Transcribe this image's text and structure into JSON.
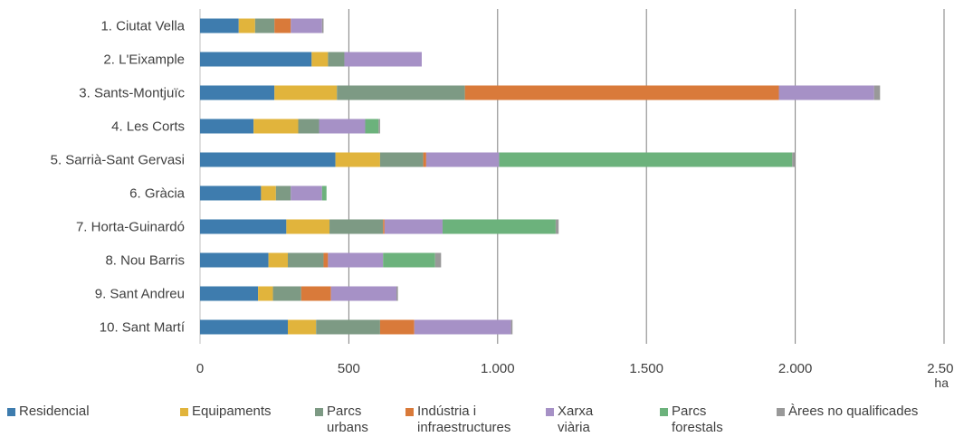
{
  "chart_data": {
    "type": "bar",
    "orientation": "horizontal",
    "stacked": true,
    "categories": [
      "1. Ciutat Vella",
      "2. L'Eixample",
      "3. Sants-Montjuïc",
      "4. Les Corts",
      "5. Sarrià-Sant Gervasi",
      "6. Gràcia",
      "7. Horta-Guinardó",
      "8. Nou Barris",
      "9. Sant Andreu",
      "10. Sant Martí"
    ],
    "series": [
      {
        "name": "Residencial",
        "color": "#3e7cae",
        "values": [
          130,
          375,
          250,
          180,
          455,
          205,
          290,
          230,
          195,
          295
        ]
      },
      {
        "name": "Equipaments",
        "color": "#e1b43c",
        "values": [
          55,
          55,
          210,
          150,
          150,
          50,
          145,
          65,
          50,
          95
        ]
      },
      {
        "name": "Parcs\nurbans",
        "color": "#7d9a84",
        "values": [
          65,
          55,
          430,
          70,
          145,
          50,
          180,
          120,
          95,
          215
        ]
      },
      {
        "name": "Indústria i\ninfraestructures",
        "color": "#d97a3a",
        "values": [
          55,
          0,
          1055,
          0,
          10,
          0,
          5,
          15,
          100,
          115
        ]
      },
      {
        "name": "Xarxa\nviària",
        "color": "#a691c6",
        "values": [
          105,
          260,
          320,
          155,
          245,
          105,
          195,
          185,
          220,
          325
        ]
      },
      {
        "name": "Parcs\nforestals",
        "color": "#6cb27c",
        "values": [
          0,
          0,
          0,
          45,
          985,
          15,
          380,
          175,
          0,
          0
        ]
      },
      {
        "name": "Àrees no qualificades",
        "color": "#999999",
        "values": [
          5,
          0,
          20,
          5,
          10,
          0,
          10,
          20,
          5,
          5
        ]
      }
    ],
    "x_axis": {
      "range": [
        0,
        2500
      ],
      "ticks": [
        0,
        500,
        1000,
        1500,
        2000,
        2500
      ],
      "tick_labels": [
        "0",
        "500",
        "1.000",
        "1.500",
        "2.000",
        "2.500"
      ],
      "unit": "ha",
      "gridlines": true
    },
    "legend": {
      "position": "bottom"
    }
  }
}
